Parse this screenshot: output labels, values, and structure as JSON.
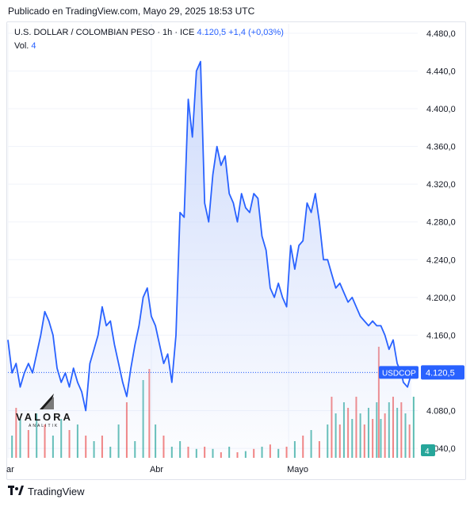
{
  "header": {
    "published": "Publicado en TradingView.com, Mayo 29, 2025 18:53 UTC"
  },
  "legend": {
    "symbol": "U.S. DOLLAR / COLOMBIAN PESO · 1h · ICE",
    "price": "4.120,5",
    "change": "+1,4 (+0,03%)",
    "vol_label": "Vol.",
    "vol_value": "4"
  },
  "watermark": {
    "brand": "VALORA",
    "sub": "ANALITIK"
  },
  "footer": {
    "brand": "TradingView"
  },
  "colors": {
    "line": "#2962ff",
    "area_top": "#c9d7fb",
    "vol_up": "#26a69a",
    "vol_down": "#ef5350",
    "badge": "#2962ff",
    "vol_badge": "#26a69a"
  },
  "chart_data": {
    "type": "area",
    "symbol_badge": "USDCOP",
    "last_price": 4120.5,
    "last_price_label": "4.120,5",
    "vol_badge": "4",
    "ylim": [
      4030,
      4490
    ],
    "y_ticks": [
      {
        "value": 4480,
        "label": "4.480,0"
      },
      {
        "value": 4440,
        "label": "4.440,0"
      },
      {
        "value": 4400,
        "label": "4.400,0"
      },
      {
        "value": 4360,
        "label": "4.360,0"
      },
      {
        "value": 4320,
        "label": "4.320,0"
      },
      {
        "value": 4280,
        "label": "4.280,0"
      },
      {
        "value": 4240,
        "label": "4.240,0"
      },
      {
        "value": 4200,
        "label": "4.200,0"
      },
      {
        "value": 4160,
        "label": "4.160,0"
      },
      {
        "value": 4120,
        "label": "4.120,0"
      },
      {
        "value": 4080,
        "label": "4.080,0"
      },
      {
        "value": 4040,
        "label": "4.040,0"
      }
    ],
    "x_ticks": [
      {
        "t": 0,
        "label": "Mar"
      },
      {
        "t": 0.35,
        "label": "Abr"
      },
      {
        "t": 0.685,
        "label": "Mayo"
      }
    ],
    "grid": true,
    "series": [
      {
        "values": [
          [
            0,
            4155
          ],
          [
            0.01,
            4120
          ],
          [
            0.02,
            4130
          ],
          [
            0.03,
            4105
          ],
          [
            0.04,
            4120
          ],
          [
            0.05,
            4130
          ],
          [
            0.06,
            4120
          ],
          [
            0.07,
            4140
          ],
          [
            0.08,
            4160
          ],
          [
            0.09,
            4185
          ],
          [
            0.1,
            4175
          ],
          [
            0.11,
            4160
          ],
          [
            0.12,
            4125
          ],
          [
            0.13,
            4110
          ],
          [
            0.14,
            4120
          ],
          [
            0.15,
            4105
          ],
          [
            0.16,
            4125
          ],
          [
            0.17,
            4110
          ],
          [
            0.18,
            4100
          ],
          [
            0.19,
            4080
          ],
          [
            0.2,
            4130
          ],
          [
            0.21,
            4145
          ],
          [
            0.22,
            4160
          ],
          [
            0.23,
            4190
          ],
          [
            0.24,
            4170
          ],
          [
            0.25,
            4175
          ],
          [
            0.26,
            4150
          ],
          [
            0.27,
            4130
          ],
          [
            0.28,
            4110
          ],
          [
            0.29,
            4095
          ],
          [
            0.3,
            4125
          ],
          [
            0.31,
            4150
          ],
          [
            0.32,
            4170
          ],
          [
            0.33,
            4200
          ],
          [
            0.34,
            4210
          ],
          [
            0.35,
            4180
          ],
          [
            0.36,
            4170
          ],
          [
            0.37,
            4150
          ],
          [
            0.38,
            4130
          ],
          [
            0.39,
            4140
          ],
          [
            0.4,
            4110
          ],
          [
            0.41,
            4160
          ],
          [
            0.42,
            4290
          ],
          [
            0.43,
            4285
          ],
          [
            0.44,
            4410
          ],
          [
            0.45,
            4370
          ],
          [
            0.46,
            4440
          ],
          [
            0.47,
            4450
          ],
          [
            0.48,
            4300
          ],
          [
            0.49,
            4280
          ],
          [
            0.5,
            4330
          ],
          [
            0.51,
            4360
          ],
          [
            0.52,
            4340
          ],
          [
            0.53,
            4350
          ],
          [
            0.54,
            4310
          ],
          [
            0.55,
            4300
          ],
          [
            0.56,
            4280
          ],
          [
            0.57,
            4310
          ],
          [
            0.58,
            4295
          ],
          [
            0.59,
            4290
          ],
          [
            0.6,
            4310
          ],
          [
            0.61,
            4305
          ],
          [
            0.62,
            4265
          ],
          [
            0.63,
            4250
          ],
          [
            0.64,
            4210
          ],
          [
            0.65,
            4200
          ],
          [
            0.66,
            4215
          ],
          [
            0.67,
            4200
          ],
          [
            0.68,
            4190
          ],
          [
            0.69,
            4255
          ],
          [
            0.7,
            4230
          ],
          [
            0.71,
            4255
          ],
          [
            0.72,
            4260
          ],
          [
            0.73,
            4300
          ],
          [
            0.74,
            4290
          ],
          [
            0.75,
            4310
          ],
          [
            0.76,
            4280
          ],
          [
            0.77,
            4240
          ],
          [
            0.78,
            4240
          ],
          [
            0.79,
            4225
          ],
          [
            0.8,
            4210
          ],
          [
            0.81,
            4215
          ],
          [
            0.82,
            4205
          ],
          [
            0.83,
            4195
          ],
          [
            0.84,
            4200
          ],
          [
            0.85,
            4190
          ],
          [
            0.86,
            4180
          ],
          [
            0.87,
            4175
          ],
          [
            0.88,
            4170
          ],
          [
            0.89,
            4175
          ],
          [
            0.9,
            4170
          ],
          [
            0.91,
            4170
          ],
          [
            0.92,
            4160
          ],
          [
            0.93,
            4145
          ],
          [
            0.94,
            4155
          ],
          [
            0.95,
            4130
          ],
          [
            0.96,
            4120
          ],
          [
            0.965,
            4110
          ],
          [
            0.975,
            4105
          ],
          [
            0.985,
            4120
          ]
        ]
      }
    ],
    "volume": [
      [
        0.01,
        0.2,
        "up"
      ],
      [
        0.02,
        0.45,
        "down"
      ],
      [
        0.03,
        0.35,
        "up"
      ],
      [
        0.05,
        0.25,
        "down"
      ],
      [
        0.07,
        0.4,
        "up"
      ],
      [
        0.09,
        0.3,
        "down"
      ],
      [
        0.11,
        0.2,
        "up"
      ],
      [
        0.13,
        0.35,
        "up"
      ],
      [
        0.15,
        0.25,
        "down"
      ],
      [
        0.17,
        0.3,
        "up"
      ],
      [
        0.19,
        0.2,
        "down"
      ],
      [
        0.21,
        0.15,
        "up"
      ],
      [
        0.23,
        0.2,
        "down"
      ],
      [
        0.25,
        0.1,
        "up"
      ],
      [
        0.27,
        0.3,
        "up"
      ],
      [
        0.29,
        0.5,
        "down"
      ],
      [
        0.31,
        0.15,
        "up"
      ],
      [
        0.33,
        0.7,
        "up"
      ],
      [
        0.345,
        0.8,
        "down"
      ],
      [
        0.36,
        0.3,
        "up"
      ],
      [
        0.38,
        0.2,
        "down"
      ],
      [
        0.4,
        0.1,
        "up"
      ],
      [
        0.42,
        0.15,
        "up"
      ],
      [
        0.44,
        0.1,
        "down"
      ],
      [
        0.46,
        0.08,
        "up"
      ],
      [
        0.48,
        0.1,
        "down"
      ],
      [
        0.5,
        0.08,
        "up"
      ],
      [
        0.52,
        0.05,
        "down"
      ],
      [
        0.54,
        0.1,
        "up"
      ],
      [
        0.56,
        0.05,
        "down"
      ],
      [
        0.58,
        0.06,
        "up"
      ],
      [
        0.6,
        0.08,
        "down"
      ],
      [
        0.62,
        0.1,
        "up"
      ],
      [
        0.64,
        0.12,
        "down"
      ],
      [
        0.66,
        0.08,
        "up"
      ],
      [
        0.68,
        0.1,
        "down"
      ],
      [
        0.7,
        0.15,
        "up"
      ],
      [
        0.72,
        0.2,
        "down"
      ],
      [
        0.74,
        0.25,
        "up"
      ],
      [
        0.76,
        0.15,
        "down"
      ],
      [
        0.78,
        0.3,
        "up"
      ],
      [
        0.79,
        0.55,
        "down"
      ],
      [
        0.8,
        0.4,
        "up"
      ],
      [
        0.81,
        0.3,
        "down"
      ],
      [
        0.82,
        0.5,
        "up"
      ],
      [
        0.83,
        0.45,
        "down"
      ],
      [
        0.84,
        0.35,
        "up"
      ],
      [
        0.85,
        0.55,
        "down"
      ],
      [
        0.86,
        0.4,
        "up"
      ],
      [
        0.87,
        0.3,
        "down"
      ],
      [
        0.88,
        0.45,
        "up"
      ],
      [
        0.89,
        0.35,
        "down"
      ],
      [
        0.9,
        0.5,
        "up"
      ],
      [
        0.905,
        1.0,
        "down"
      ],
      [
        0.91,
        0.35,
        "up"
      ],
      [
        0.92,
        0.4,
        "down"
      ],
      [
        0.93,
        0.5,
        "up"
      ],
      [
        0.94,
        0.55,
        "down"
      ],
      [
        0.95,
        0.45,
        "up"
      ],
      [
        0.96,
        0.5,
        "down"
      ],
      [
        0.97,
        0.4,
        "up"
      ],
      [
        0.98,
        0.3,
        "down"
      ],
      [
        0.99,
        0.55,
        "up"
      ]
    ]
  }
}
